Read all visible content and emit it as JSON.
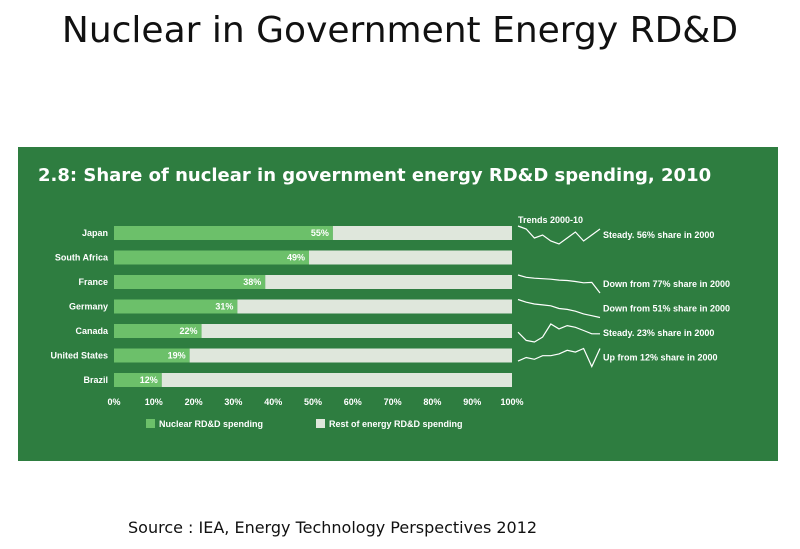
{
  "slide": {
    "title": "Nuclear in Government Energy RD&D",
    "source": "Source : IEA, Energy Technology Perspectives 2012"
  },
  "colors": {
    "panel_bg": "#2e7d40",
    "nuclear": "#6cc06a",
    "rest": "#dfe7dc",
    "text": "#ffffff"
  },
  "chart_data": {
    "type": "bar",
    "orientation": "horizontal",
    "stacked": true,
    "title": "2.8:  Share of nuclear in government energy RD&D spending, 2010",
    "categories": [
      "Japan",
      "South Africa",
      "France",
      "Germany",
      "Canada",
      "United States",
      "Brazil"
    ],
    "series": [
      {
        "name": "Nuclear RD&D spending",
        "values": [
          55,
          49,
          38,
          31,
          22,
          19,
          12
        ]
      },
      {
        "name": "Rest of energy RD&D spending",
        "values": [
          45,
          51,
          62,
          69,
          78,
          81,
          88
        ]
      }
    ],
    "data_labels": [
      "55%",
      "49%",
      "38%",
      "31%",
      "22%",
      "19%",
      "12%"
    ],
    "x_ticks": [
      "0%",
      "10%",
      "20%",
      "30%",
      "40%",
      "50%",
      "60%",
      "70%",
      "80%",
      "90%",
      "100%"
    ],
    "xlim": [
      0,
      100
    ],
    "legend_position": "bottom",
    "grid": false,
    "trends": {
      "title": "Trends 2000-10",
      "rows": [
        {
          "label": "Steady.  56% share in 2000",
          "values": [
            56,
            55,
            52,
            53,
            51,
            50,
            52,
            54,
            51,
            53,
            55
          ]
        },
        {
          "label": "",
          "values": []
        },
        {
          "label": "Down from 77%  share in 2000",
          "values": [
            77,
            72,
            70,
            69,
            68,
            66,
            65,
            63,
            60,
            61,
            38
          ]
        },
        {
          "label": "Down from 51% share in 2000",
          "values": [
            51,
            48,
            46,
            45,
            44,
            41,
            40,
            38,
            35,
            33,
            31
          ]
        },
        {
          "label": "Steady.  23% share in 2000",
          "values": [
            23,
            18,
            17,
            20,
            28,
            25,
            27,
            26,
            24,
            22,
            22
          ]
        },
        {
          "label": "Up from 12% share in 2000",
          "values": [
            12,
            14,
            13,
            15,
            15,
            16,
            18,
            17,
            19,
            9,
            19
          ]
        }
      ]
    }
  }
}
